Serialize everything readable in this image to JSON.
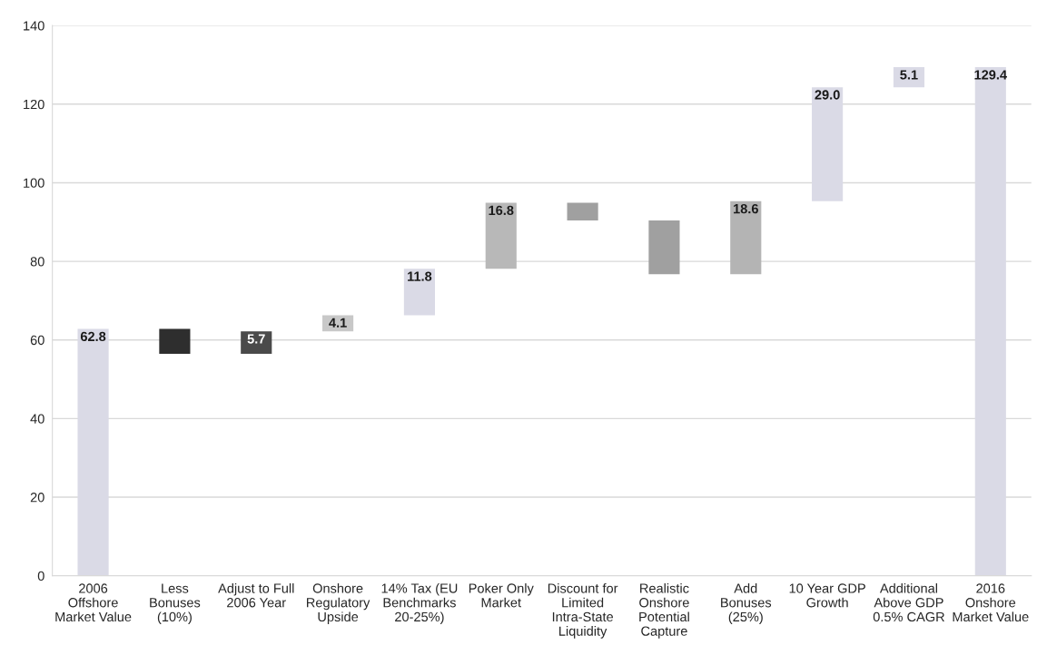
{
  "chart_data": {
    "type": "bar",
    "categories": [
      "2006 Offshore Market Value",
      "Less Bonuses (10%)",
      "Adjust to Full 2006 Year",
      "Onshore Regulatory Upside",
      "14% Tax (EU Benchmarks 20-25%)",
      "Poker Only Market",
      "Discount for Limited Intra-State Liquidity",
      "Realistic Onshore Potential Capture",
      "Add Bonuses (25%)",
      "10 Year GDP Growth",
      "Additional Above GDP 0.5% CAGR",
      "2016 Onshore Market Value"
    ],
    "values": [
      62.8,
      -6.3,
      5.7,
      4.1,
      11.8,
      16.8,
      -4.5,
      -13.7,
      18.6,
      29.0,
      5.1,
      129.4
    ],
    "base": [
      0,
      62.8,
      56.5,
      62.2,
      66.3,
      78.1,
      94.9,
      90.4,
      76.7,
      95.3,
      124.3,
      0
    ],
    "colors": [
      "#dadae6",
      "#2e2e2e",
      "#4a4a4a",
      "#c8c8c8",
      "#dadae6",
      "#b8b8b8",
      "#a0a0a0",
      "#a0a0a0",
      "#b4b4b4",
      "#dadae6",
      "#dadae6",
      "#dadae6"
    ],
    "value_labels": [
      "62.8",
      null,
      "5.7",
      "4.1",
      "11.8",
      "16.8",
      null,
      null,
      "18.6",
      "29.0",
      "5.1",
      "129.4"
    ],
    "ylim": [
      0,
      140
    ],
    "yticks": [
      0,
      20,
      40,
      60,
      80,
      100,
      120,
      140
    ],
    "grid": "y"
  }
}
